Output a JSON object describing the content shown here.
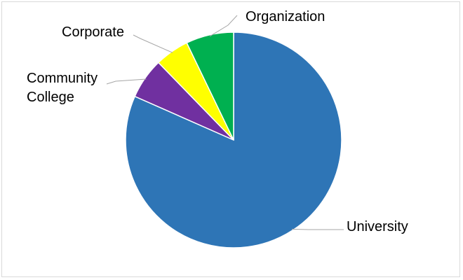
{
  "chart_data": {
    "type": "pie",
    "title": "",
    "start_angle_deg": 0,
    "direction": "clockwise",
    "slices": [
      {
        "label": "University",
        "value": 80,
        "color": "#2E75B6"
      },
      {
        "label": "Community College",
        "value": 6,
        "color": "#7030A0"
      },
      {
        "label": "Corporate",
        "value": 5,
        "color": "#FFFF00"
      },
      {
        "label": "Organization",
        "value": 7,
        "color": "#00B050"
      }
    ],
    "legend": "none",
    "label_style": "outside labels with leader lines"
  }
}
